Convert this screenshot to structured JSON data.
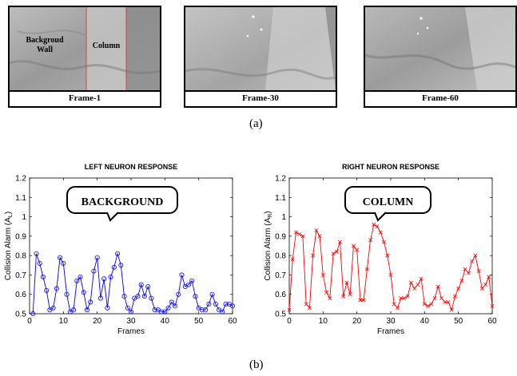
{
  "frames": [
    {
      "caption": "Frame-1",
      "labels": [
        "Backgroud\nWall",
        "Column"
      ]
    },
    {
      "caption": "Frame-30"
    },
    {
      "caption": "Frame-60"
    }
  ],
  "panel_labels": {
    "a": "(a)",
    "b": "(b)"
  },
  "colors": {
    "left_series": "#0000ff",
    "right_series": "#ff0000",
    "column_lines": "#e04040"
  },
  "chart_data": [
    {
      "type": "line",
      "title": "LEFT NEURON RESPONSE",
      "xlabel": "Frames",
      "ylabel": "Collision Alarm (A",
      "ylabel_sub": "L",
      "ylabel_close": ")",
      "xlim": [
        0,
        60
      ],
      "ylim": [
        0.5,
        1.2
      ],
      "xticks": [
        0,
        10,
        20,
        30,
        40,
        50,
        60
      ],
      "yticks": [
        0.5,
        0.6,
        0.7,
        0.8,
        0.9,
        1,
        1.1,
        1.2
      ],
      "ytick_labels": [
        "0.5",
        "0.6",
        "0.7",
        "0.8",
        "0.9",
        "1",
        "1.1",
        "1.2"
      ],
      "grid": false,
      "marker": "circle",
      "color": "#0000ff",
      "annotation": "BACKGROUND",
      "series": [
        {
          "x": [
            1,
            2,
            3,
            4,
            5,
            6,
            7,
            8,
            9,
            10,
            11,
            12,
            13,
            14,
            15,
            16,
            17,
            18,
            19,
            20,
            21,
            22,
            23,
            24,
            25,
            26,
            27,
            28,
            29,
            30,
            31,
            32,
            33,
            34,
            35,
            36,
            37,
            38,
            39,
            40,
            41,
            42,
            43,
            44,
            45,
            46,
            47,
            48,
            49,
            50,
            51,
            52,
            53,
            54,
            55,
            56,
            57,
            58,
            59,
            60
          ],
          "values": [
            0.5,
            0.81,
            0.76,
            0.69,
            0.62,
            0.52,
            0.53,
            0.63,
            0.79,
            0.76,
            0.6,
            0.51,
            0.52,
            0.67,
            0.69,
            0.61,
            0.52,
            0.56,
            0.72,
            0.79,
            0.58,
            0.68,
            0.53,
            0.69,
            0.74,
            0.81,
            0.75,
            0.59,
            0.53,
            0.51,
            0.58,
            0.59,
            0.65,
            0.59,
            0.64,
            0.58,
            0.52,
            0.52,
            0.51,
            0.51,
            0.53,
            0.56,
            0.54,
            0.6,
            0.7,
            0.64,
            0.65,
            0.67,
            0.59,
            0.53,
            0.52,
            0.52,
            0.55,
            0.6,
            0.55,
            0.52,
            0.51,
            0.55,
            0.55,
            0.54
          ]
        }
      ]
    },
    {
      "type": "line",
      "title": "RIGHT NEURON RESPONSE",
      "xlabel": "Frames",
      "ylabel": "Collision Alarm (A",
      "ylabel_sub": "R",
      "ylabel_close": ")",
      "xlim": [
        0,
        60
      ],
      "ylim": [
        0.5,
        1.2
      ],
      "xticks": [
        0,
        10,
        20,
        30,
        40,
        50,
        60
      ],
      "yticks": [
        0.5,
        0.6,
        0.7,
        0.8,
        0.9,
        1,
        1.1,
        1.2
      ],
      "ytick_labels": [
        "0.5",
        "0.6",
        "0.7",
        "0.8",
        "0.9",
        "1",
        "1.1",
        "1.2"
      ],
      "grid": false,
      "marker": "x",
      "color": "#ff0000",
      "annotation": "COLUMN",
      "series": [
        {
          "x": [
            0,
            1,
            2,
            3,
            4,
            5,
            6,
            7,
            8,
            9,
            10,
            11,
            12,
            13,
            14,
            15,
            16,
            17,
            18,
            19,
            20,
            21,
            22,
            23,
            24,
            25,
            26,
            27,
            28,
            29,
            30,
            31,
            32,
            33,
            34,
            35,
            36,
            37,
            38,
            39,
            40,
            41,
            42,
            43,
            44,
            45,
            46,
            47,
            48,
            49,
            50,
            51,
            52,
            53,
            54,
            55,
            56,
            57,
            58,
            59,
            60
          ],
          "values": [
            0.52,
            0.78,
            0.92,
            0.91,
            0.9,
            0.55,
            0.53,
            0.8,
            0.93,
            0.9,
            0.7,
            0.61,
            0.58,
            0.81,
            0.82,
            0.87,
            0.59,
            0.66,
            0.6,
            0.85,
            0.83,
            0.57,
            0.57,
            0.73,
            0.88,
            0.96,
            0.95,
            0.92,
            0.87,
            0.8,
            0.7,
            0.55,
            0.53,
            0.58,
            0.58,
            0.59,
            0.66,
            0.63,
            0.65,
            0.68,
            0.55,
            0.54,
            0.55,
            0.58,
            0.64,
            0.58,
            0.56,
            0.56,
            0.52,
            0.59,
            0.63,
            0.67,
            0.73,
            0.71,
            0.77,
            0.8,
            0.72,
            0.63,
            0.65,
            0.69,
            0.54
          ]
        }
      ]
    }
  ]
}
